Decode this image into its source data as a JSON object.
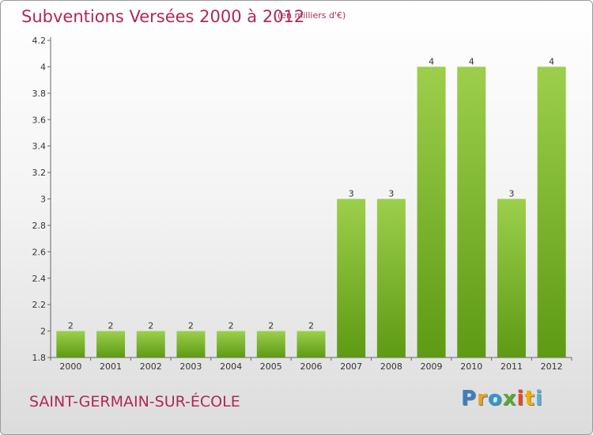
{
  "title": "Subventions Versées 2000 à 2012",
  "subtitle": "(en milliers d'€)",
  "commune": "SAINT-GERMAIN-SUR-ÉCOLE",
  "logo": {
    "letters": [
      "P",
      "r",
      "o",
      "x",
      "i",
      "t",
      "i"
    ],
    "colors": [
      "#3a7fc1",
      "#e8a020",
      "#2e9ad0",
      "#5aa832",
      "#e04a2c",
      "#f0b000",
      "#56b0dc"
    ]
  },
  "colors": {
    "bar_top": "#9ccf4c",
    "bar_bottom": "#5e9a14",
    "title": "#b0275a"
  },
  "chart_data": {
    "type": "bar",
    "categories": [
      "2000",
      "2001",
      "2002",
      "2003",
      "2004",
      "2005",
      "2006",
      "2007",
      "2008",
      "2009",
      "2010",
      "2011",
      "2012"
    ],
    "values": [
      2,
      2,
      2,
      2,
      2,
      2,
      2,
      3,
      3,
      4,
      4,
      3,
      4
    ],
    "data_labels": [
      "2",
      "2",
      "2",
      "2",
      "2",
      "2",
      "2",
      "3",
      "3",
      "4",
      "4",
      "3",
      "4"
    ],
    "yticks": [
      "1.8",
      "2",
      "2.2",
      "2.4",
      "2.6",
      "2.8",
      "3",
      "3.2",
      "3.4",
      "3.6",
      "3.8",
      "4",
      "4.2"
    ],
    "ylim": [
      1.8,
      4.2
    ],
    "grid": false,
    "legend": "none"
  }
}
